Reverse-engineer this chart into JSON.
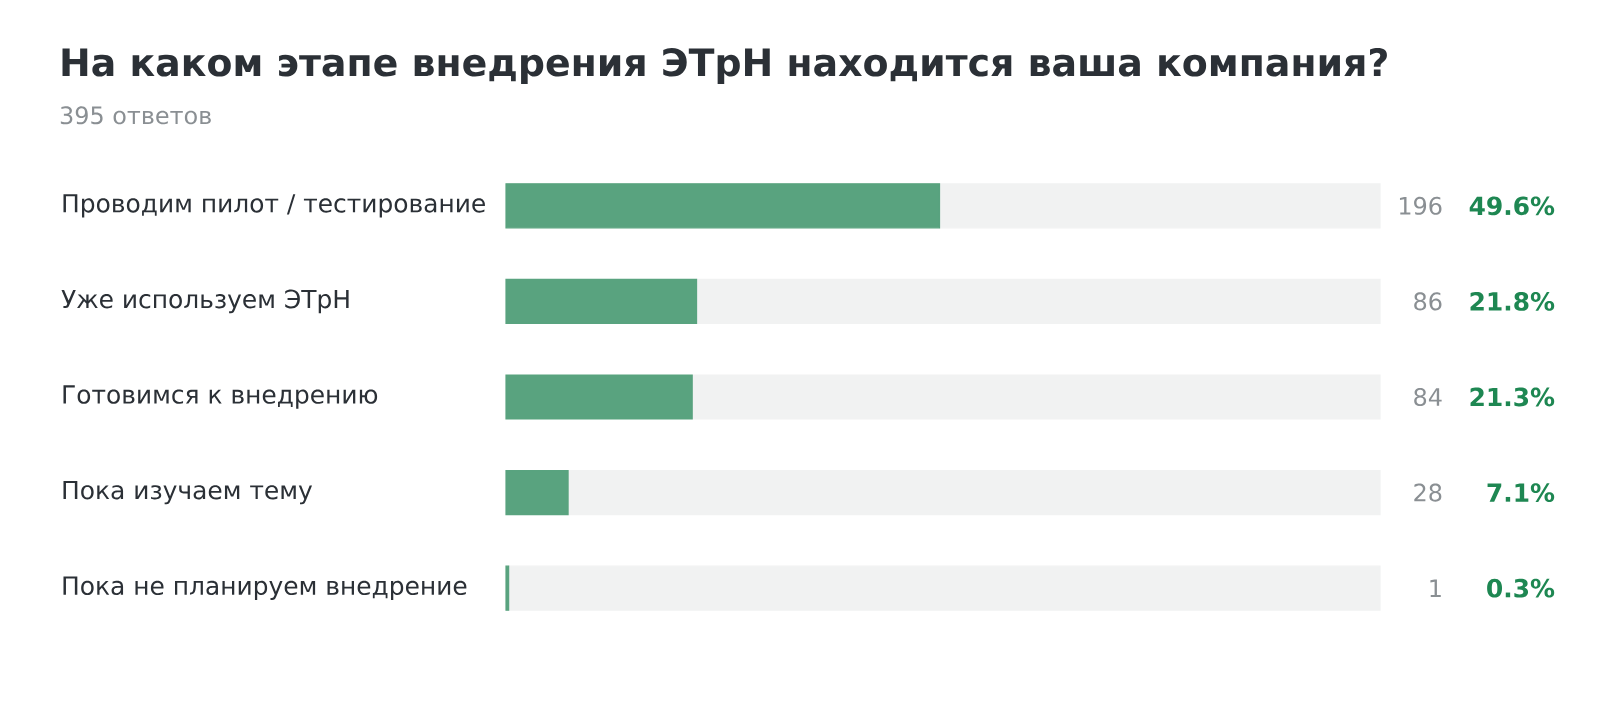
{
  "chart_data": {
    "type": "bar",
    "orientation": "horizontal",
    "stacked": true,
    "title": "На каком этапе внедрения ЭТрН находится ваша компания?",
    "subtitle": "395 ответов",
    "categories": [
      "Проводим пилот / тестирование",
      "Уже используем ЭТрН",
      "Готовимся к внедрению",
      "Пока изучаем тему",
      "Пока не планируем внедрение"
    ],
    "series": [
      {
        "color": "#59a37f",
        "values": [
          49.6,
          21.8,
          21.3,
          7.1,
          0.3
        ],
        "value_labels": [
          "49.6%",
          "21.8%",
          "21.3%",
          "7.1%",
          "0.3%"
        ]
      },
      {
        "color": "#f1f2f2",
        "values": [
          50.4,
          78.2,
          78.7,
          92.9,
          99.7
        ]
      }
    ],
    "xlim": [
      0,
      100
    ],
    "annotations": [
      "196",
      "86",
      "84",
      "28",
      "1"
    ]
  }
}
